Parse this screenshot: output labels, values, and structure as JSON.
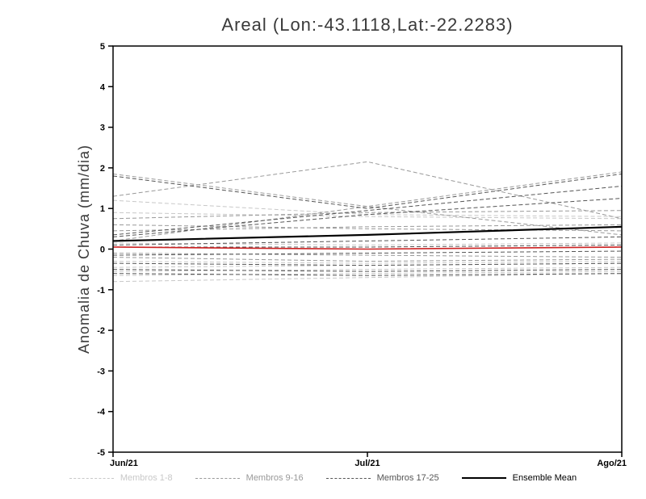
{
  "title": "Areal (Lon:-43.1118,Lat:-22.2283)",
  "chart_data": {
    "type": "line",
    "title": "Areal (Lon:-43.1118,Lat:-22.2283)",
    "xlabel": "",
    "ylabel": "Anomalia de Chuva (mm/dia)",
    "x_categories": [
      "Jun/21",
      "Jul/21",
      "Ago/21"
    ],
    "ylim": [
      -5,
      5
    ],
    "yticks": [
      -5,
      -4,
      -3,
      -2,
      -1,
      0,
      1,
      2,
      3,
      4,
      5
    ],
    "grid": false,
    "legend_position": "bottom",
    "groups": [
      {
        "name": "Membros 1-8",
        "color": "#c8c8c8",
        "style": "dashed",
        "members": [
          [
            1.2,
            0.85,
            0.8
          ],
          [
            0.9,
            0.8,
            0.75
          ],
          [
            -0.3,
            -0.35,
            -0.3
          ],
          [
            -0.45,
            -0.4,
            -0.35
          ],
          [
            -0.55,
            -0.5,
            -0.45
          ],
          [
            -0.65,
            -0.6,
            -0.55
          ],
          [
            -0.8,
            -0.7,
            -0.6
          ],
          [
            0.15,
            0.1,
            0.15
          ]
        ]
      },
      {
        "name": "Membros 9-16",
        "color": "#999999",
        "style": "dashed",
        "members": [
          [
            1.85,
            1.05,
            0.35
          ],
          [
            1.3,
            2.15,
            0.75
          ],
          [
            0.2,
            1.05,
            1.9
          ],
          [
            0.75,
            0.9,
            0.95
          ],
          [
            0.45,
            0.55,
            0.6
          ],
          [
            -0.1,
            -0.15,
            -0.2
          ],
          [
            -0.2,
            -0.3,
            -0.25
          ],
          [
            0.6,
            0.5,
            0.45
          ]
        ]
      },
      {
        "name": "Membros 17-25",
        "color": "#555555",
        "style": "dashed",
        "members": [
          [
            1.8,
            1.0,
            1.85
          ],
          [
            0.35,
            0.95,
            1.55
          ],
          [
            0.3,
            0.85,
            1.25
          ],
          [
            0.1,
            0.2,
            0.3
          ],
          [
            0.05,
            0.05,
            0.1
          ],
          [
            -0.15,
            -0.1,
            -0.05
          ],
          [
            -0.35,
            -0.4,
            -0.35
          ],
          [
            -0.5,
            -0.55,
            -0.5
          ],
          [
            -0.6,
            -0.65,
            -0.6
          ]
        ]
      }
    ],
    "ensemble_mean": {
      "name": "Ensemble Mean",
      "color": "#000000",
      "style": "solid",
      "values": [
        0.2,
        0.35,
        0.55
      ]
    },
    "reference_line": {
      "name": "zero-anomaly-reference",
      "color": "#cc2222",
      "style": "solid",
      "values": [
        0.05,
        0.0,
        0.05
      ]
    },
    "legend": [
      {
        "label": "Membros 1-8",
        "color": "#c8c8c8",
        "dash": true,
        "weight": 1
      },
      {
        "label": "Membros 9-16",
        "color": "#999999",
        "dash": true,
        "weight": 1
      },
      {
        "label": "Membros 17-25",
        "color": "#555555",
        "dash": true,
        "weight": 1
      },
      {
        "label": "Ensemble Mean",
        "color": "#000000",
        "dash": false,
        "weight": 2
      }
    ]
  }
}
